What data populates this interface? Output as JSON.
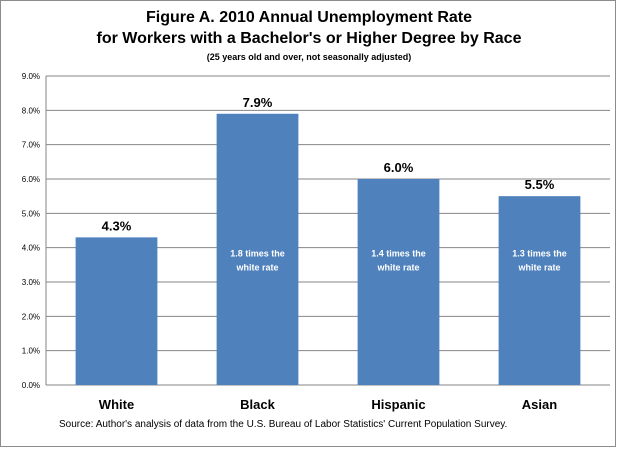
{
  "chart_data": {
    "type": "bar",
    "title": "Figure A. 2010 Annual Unemployment Rate",
    "title_line2": "for Workers with a Bachelor's or Higher Degree by Race",
    "subtitle": "(25 years old and over, not seasonally adjusted)",
    "categories": [
      "White",
      "Black",
      "Hispanic",
      "Asian"
    ],
    "values": [
      4.3,
      7.9,
      6.0,
      5.5
    ],
    "value_labels": [
      "4.3%",
      "7.9%",
      "6.0%",
      "5.5%"
    ],
    "annotations": [
      null,
      [
        "1.8 times the",
        "white rate"
      ],
      [
        "1.4 times the",
        "white rate"
      ],
      [
        "1.3 times the",
        "white rate"
      ]
    ],
    "ylim": [
      0,
      9
    ],
    "yticks": [
      "0.0%",
      "1.0%",
      "2.0%",
      "3.0%",
      "4.0%",
      "5.0%",
      "6.0%",
      "7.0%",
      "8.0%",
      "9.0%"
    ],
    "xlabel": "",
    "ylabel": "",
    "grid": true,
    "bar_color": "#4f81bd",
    "gridline_color": "#868686",
    "source": "Source: Author's analysis of data from the U.S. Bureau of Labor Statistics' Current Population Survey."
  }
}
